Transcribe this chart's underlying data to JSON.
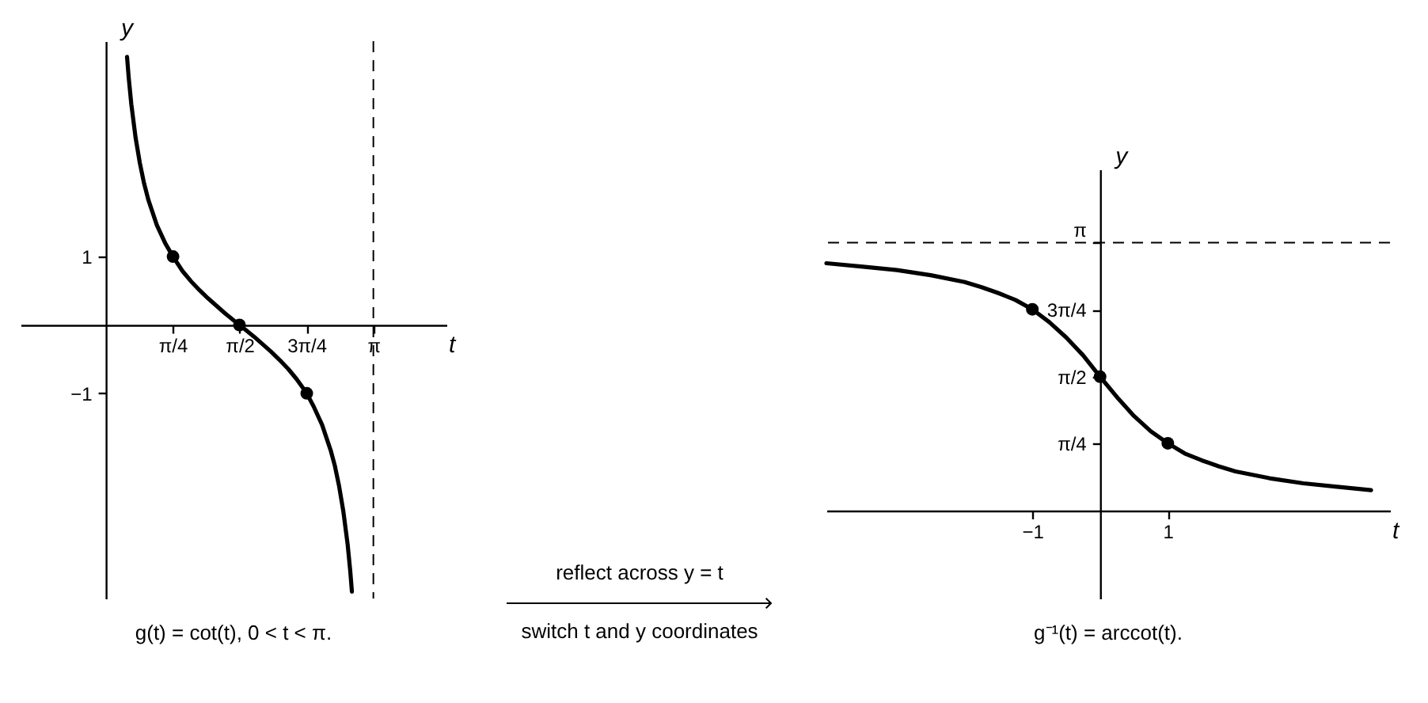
{
  "chart_data": [
    {
      "type": "line",
      "xlabel": "t",
      "ylabel": "y",
      "annotations": [
        "g(t) = cot(t), 0 < t < π."
      ],
      "xlim": [
        -1,
        4
      ],
      "ylim": [
        -4,
        4.15
      ],
      "xticks": [
        {
          "value": 0.785,
          "label": "π/4"
        },
        {
          "value": 1.571,
          "label": "π/2"
        },
        {
          "value": 2.356,
          "label": "3π/4"
        },
        {
          "value": 3.142,
          "label": "π"
        }
      ],
      "yticks": [
        {
          "value": -1,
          "label": "−1"
        },
        1
      ],
      "ref_lines": [
        {
          "axis": "x",
          "value": 3.142,
          "line_style": "dashed",
          "color": "#000000"
        }
      ],
      "series": [
        {
          "type": "line",
          "color": "#000000",
          "x": [
            0.25,
            0.27,
            0.3,
            0.35,
            0.4,
            0.45,
            0.5,
            0.6,
            0.7,
            0.79,
            0.9,
            1.0,
            1.1,
            1.2,
            1.3,
            1.4,
            1.5,
            1.57,
            1.64,
            1.74,
            1.84,
            1.94,
            2.04,
            2.14,
            2.24,
            2.36,
            2.44,
            2.54,
            2.64,
            2.69,
            2.74,
            2.79,
            2.84,
            2.87,
            2.89
          ],
          "values": [
            3.92,
            3.61,
            3.23,
            2.74,
            2.37,
            2.07,
            1.83,
            1.46,
            1.19,
            1.0,
            0.79,
            0.64,
            0.51,
            0.39,
            0.28,
            0.17,
            0.07,
            0,
            -0.07,
            -0.17,
            -0.28,
            -0.39,
            -0.51,
            -0.64,
            -0.79,
            -1.0,
            -1.19,
            -1.46,
            -1.83,
            -2.06,
            -2.36,
            -2.73,
            -3.21,
            -3.59,
            -3.9
          ]
        },
        {
          "type": "scatter",
          "color": "#000000",
          "marker": "circle",
          "x": [
            0.79,
            1.57,
            2.36
          ],
          "values": [
            1,
            0,
            -1
          ]
        }
      ]
    },
    {
      "type": "other",
      "annotations": [
        "reflect across y = t",
        "switch t and y coordinates"
      ]
    },
    {
      "type": "line",
      "xlabel": "t",
      "ylabel": "y",
      "annotations": [
        "g⁻¹(t) = arccot(t)."
      ],
      "xlim": [
        -4.04,
        4.28
      ],
      "ylim": [
        -1.03,
        4.0
      ],
      "xticks": [
        {
          "value": -1,
          "label": "−1"
        },
        1
      ],
      "yticks": [
        {
          "value": 0.785,
          "label": "π/4"
        },
        {
          "value": 1.571,
          "label": "π/2"
        },
        {
          "value": 2.356,
          "label": "3π/4"
        },
        {
          "value": 3.142,
          "label": "π"
        }
      ],
      "ref_lines": [
        {
          "axis": "y",
          "value": 3.142,
          "line_style": "dashed",
          "color": "#000000"
        }
      ],
      "series": [
        {
          "type": "line",
          "color": "#000000",
          "x": [
            -4.04,
            -3.5,
            -3,
            -2.5,
            -2,
            -1.75,
            -1.5,
            -1.25,
            -1,
            -0.75,
            -0.5,
            -0.25,
            0,
            0.25,
            0.5,
            0.75,
            1,
            1.25,
            1.5,
            1.75,
            2,
            2.5,
            3,
            3.5,
            4.0
          ],
          "values": [
            2.9,
            2.86,
            2.82,
            2.76,
            2.68,
            2.62,
            2.55,
            2.47,
            2.36,
            2.21,
            2.03,
            1.82,
            1.57,
            1.33,
            1.11,
            0.93,
            0.79,
            0.67,
            0.59,
            0.52,
            0.46,
            0.38,
            0.32,
            0.28,
            0.24
          ]
        },
        {
          "type": "scatter",
          "color": "#000000",
          "marker": "circle",
          "x": [
            -1,
            0,
            1
          ],
          "values": [
            2.36,
            1.57,
            0.79
          ]
        }
      ]
    }
  ]
}
